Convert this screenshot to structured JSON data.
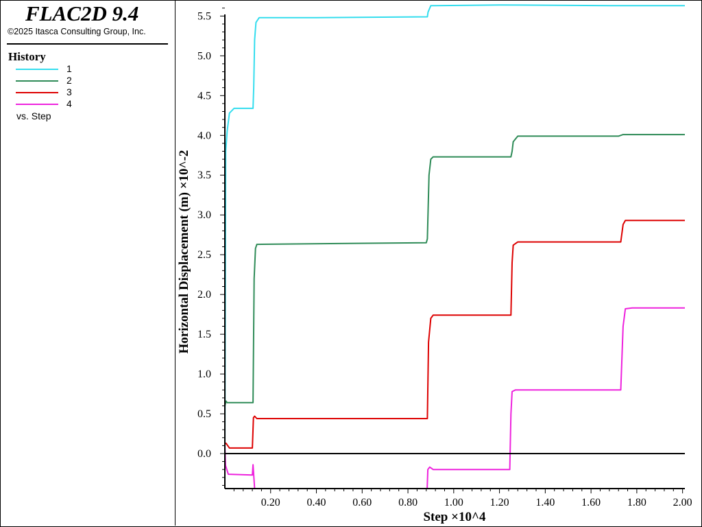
{
  "app": {
    "title": "FLAC2D 9.4",
    "copyright": "©2025 Itasca Consulting Group, Inc."
  },
  "legend": {
    "title": "History",
    "xvar": "vs. Step",
    "items": [
      {
        "label": "1",
        "color": "#33DDEE"
      },
      {
        "label": "2",
        "color": "#2E8B57"
      },
      {
        "label": "3",
        "color": "#DD0000"
      },
      {
        "label": "4",
        "color": "#EE22DD"
      }
    ]
  },
  "chart_data": {
    "type": "line",
    "xlabel": "Step ×10^4",
    "ylabel": "Horizontal Displacement (m) ×10^-2",
    "xlim": [
      0,
      2.01
    ],
    "ylim": [
      -0.44,
      5.65
    ],
    "xticks": [
      "0.20",
      "0.40",
      "0.60",
      "0.80",
      "1.00",
      "1.20",
      "1.40",
      "1.60",
      "1.80",
      "2.00"
    ],
    "yticks": [
      "0.0",
      "0.5",
      "1.0",
      "1.5",
      "2.0",
      "2.5",
      "3.0",
      "3.5",
      "4.0",
      "4.5",
      "5.0",
      "5.5"
    ],
    "zero_line": true,
    "grid": false,
    "series": [
      {
        "name": "1",
        "color": "#33DDEE",
        "points": [
          [
            0,
            0
          ],
          [
            0.004,
            3.8
          ],
          [
            0.01,
            4.05
          ],
          [
            0.02,
            4.28
          ],
          [
            0.04,
            4.34
          ],
          [
            0.123,
            4.34
          ],
          [
            0.126,
            4.6
          ],
          [
            0.13,
            5.2
          ],
          [
            0.136,
            5.42
          ],
          [
            0.15,
            5.48
          ],
          [
            0.4,
            5.48
          ],
          [
            0.885,
            5.49
          ],
          [
            0.888,
            5.55
          ],
          [
            0.9,
            5.63
          ],
          [
            1.2,
            5.64
          ],
          [
            1.7,
            5.63
          ],
          [
            2.01,
            5.63
          ]
        ]
      },
      {
        "name": "2",
        "color": "#2E8B57",
        "points": [
          [
            0,
            0.6
          ],
          [
            0.005,
            0.66
          ],
          [
            0.01,
            0.64
          ],
          [
            0.12,
            0.64
          ],
          [
            0.123,
            0.64
          ],
          [
            0.128,
            2.2
          ],
          [
            0.134,
            2.58
          ],
          [
            0.14,
            2.63
          ],
          [
            0.5,
            2.64
          ],
          [
            0.88,
            2.65
          ],
          [
            0.885,
            2.7
          ],
          [
            0.892,
            3.5
          ],
          [
            0.9,
            3.7
          ],
          [
            0.91,
            3.73
          ],
          [
            1.25,
            3.73
          ],
          [
            1.255,
            3.8
          ],
          [
            1.26,
            3.92
          ],
          [
            1.28,
            3.99
          ],
          [
            1.72,
            3.99
          ],
          [
            1.74,
            4.01
          ],
          [
            2.01,
            4.01
          ]
        ]
      },
      {
        "name": "3",
        "color": "#DD0000",
        "points": [
          [
            0,
            0.12
          ],
          [
            0.005,
            0.13
          ],
          [
            0.02,
            0.07
          ],
          [
            0.12,
            0.07
          ],
          [
            0.125,
            0.45
          ],
          [
            0.13,
            0.47
          ],
          [
            0.14,
            0.44
          ],
          [
            0.5,
            0.44
          ],
          [
            0.885,
            0.44
          ],
          [
            0.89,
            1.4
          ],
          [
            0.9,
            1.7
          ],
          [
            0.91,
            1.74
          ],
          [
            1.25,
            1.74
          ],
          [
            1.255,
            2.4
          ],
          [
            1.26,
            2.62
          ],
          [
            1.28,
            2.66
          ],
          [
            1.73,
            2.66
          ],
          [
            1.74,
            2.88
          ],
          [
            1.75,
            2.93
          ],
          [
            2.01,
            2.93
          ]
        ]
      },
      {
        "name": "4",
        "color": "#EE22DD",
        "points": [
          [
            0,
            0.1
          ],
          [
            0.003,
            -0.15
          ],
          [
            0.015,
            -0.26
          ],
          [
            0.12,
            -0.27
          ],
          [
            0.123,
            -0.14
          ],
          [
            0.126,
            -0.27
          ],
          [
            0.13,
            -0.44
          ],
          [
            0.884,
            -0.44
          ],
          [
            0.887,
            -0.2
          ],
          [
            0.895,
            -0.17
          ],
          [
            0.91,
            -0.2
          ],
          [
            1.245,
            -0.2
          ],
          [
            1.25,
            0.5
          ],
          [
            1.255,
            0.78
          ],
          [
            1.27,
            0.8
          ],
          [
            1.73,
            0.8
          ],
          [
            1.74,
            1.6
          ],
          [
            1.75,
            1.82
          ],
          [
            1.78,
            1.83
          ],
          [
            2.01,
            1.83
          ]
        ]
      }
    ]
  }
}
